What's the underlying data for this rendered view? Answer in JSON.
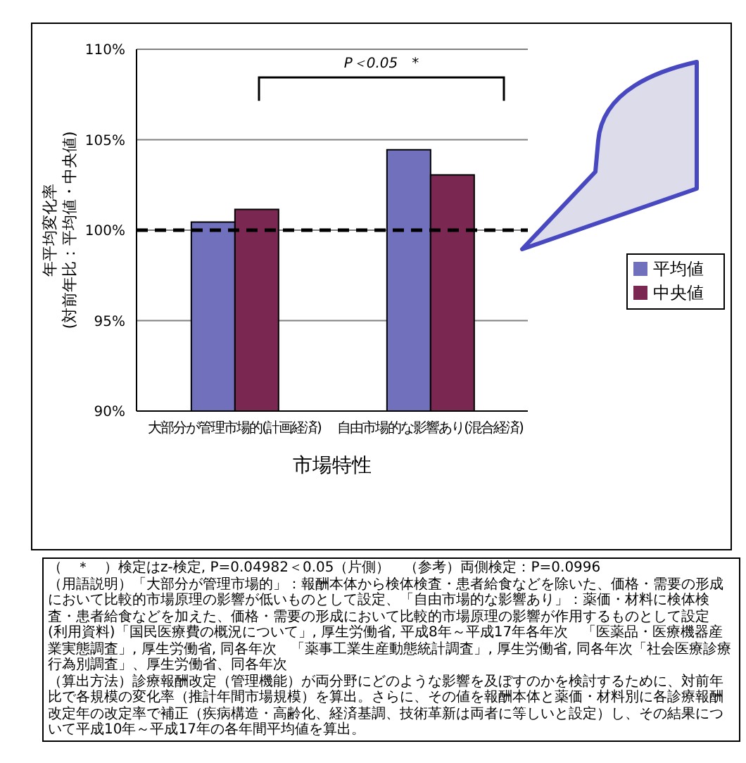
{
  "chart_data": {
    "type": "bar",
    "xlabel": "市場特性",
    "ylabel": "年平均変化率\n(対前年比：平均値・中央値)",
    "categories": [
      "大部分が管理市場的(計画経済)",
      "自由市場的な影響あり(混合経済)"
    ],
    "series": [
      {
        "name": "平均値",
        "color": "#7070bc",
        "values": [
          100.45,
          104.45
        ]
      },
      {
        "name": "中央値",
        "color": "#7a2852",
        "values": [
          101.15,
          103.05
        ]
      }
    ],
    "ylim": [
      90,
      110
    ],
    "yticks": [
      {
        "value": 90,
        "label": "90%"
      },
      {
        "value": 95,
        "label": "95%"
      },
      {
        "value": 100,
        "label": "100%"
      },
      {
        "value": 105,
        "label": "105%"
      },
      {
        "value": 110,
        "label": "110%"
      }
    ],
    "grid": "y",
    "legend": "right",
    "ref_lines": [
      {
        "axis": "y",
        "value": 100,
        "color": "#000000",
        "line_style": "dashed"
      }
    ],
    "annotations": [
      "P＜0.05　*",
      "（　＊　）検定はz-検定, P=0.04982＜0.05（片側）　（参考）両側検定：P=0.0996",
      "（用語説明）「大部分が管理市場的」：報酬本体から検体検査・患者給食などを除いた、価格・需要の形成において比較的市場原理の影響が低いものとして設定、「自由市場的な影響あり」：薬価・材料に検体検査・患者給食などを加えた、価格・需要の形成において比較的市場原理の影響が作用するものとして設定",
      "(利用資料)「国民医療費の概況について」, 厚生労働省, 平成8年～平成17年各年次　「医薬品・医療機器産業実態調査」, 厚生労働省, 同各年次　「薬事工業生産動態統計調査」, 厚生労働省, 同各年次「社会医療診療行為別調査」、厚生労働省、同各年次",
      "（算出方法）診療報酬改定（管理機能）が両分野にどのような影響を及ぼすのかを検討するために、対前年比で各規模の変化率（推計年間市場規模）を算出。さらに、その値を報酬本体と薬価・材料別に各診療報酬改定年の改定率で補正（疾病構造・高齢化、経済基調、技術革新は両者に等しいと設定）し、その結果について平成10年～平成17年の各年間平均値を算出。"
    ]
  }
}
